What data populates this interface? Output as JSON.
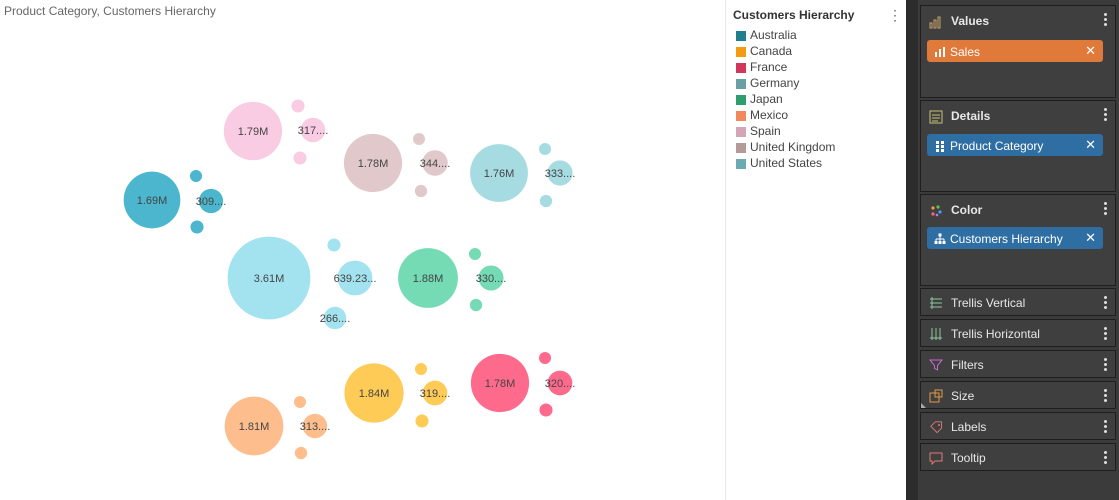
{
  "chart_title": "Product Category, Customers Hierarchy",
  "legend": {
    "title": "Customers Hierarchy",
    "items": [
      {
        "label": "Australia",
        "color": "#1f7f8f"
      },
      {
        "label": "Canada",
        "color": "#f39c12"
      },
      {
        "label": "France",
        "color": "#d1365b"
      },
      {
        "label": "Germany",
        "color": "#6b9fa6"
      },
      {
        "label": "Japan",
        "color": "#2e9e6e"
      },
      {
        "label": "Mexico",
        "color": "#f08a5d"
      },
      {
        "label": "Spain",
        "color": "#d4a5b5"
      },
      {
        "label": "United Kingdom",
        "color": "#b59a9a"
      },
      {
        "label": "United States",
        "color": "#6aaab2"
      }
    ]
  },
  "panel": {
    "values": {
      "title": "Values",
      "field": "Sales",
      "field_color": "#e07a3a"
    },
    "details": {
      "title": "Details",
      "field": "Product Category",
      "field_color": "#2f6ea3"
    },
    "color": {
      "title": "Color",
      "field": "Customers Hierarchy",
      "field_color": "#2f6ea3"
    },
    "trellis_vertical": "Trellis Vertical",
    "trellis_horizontal": "Trellis Horizontal",
    "filters": "Filters",
    "size": "Size",
    "labels": "Labels",
    "tooltip": "Tooltip"
  },
  "chart_data": {
    "type": "packed-bubble",
    "title": "Product Category, Customers Hierarchy",
    "measure": "Sales",
    "groups": [
      {
        "name": "United States",
        "color": "#a3e3ef",
        "bubbles": [
          {
            "value": 3610000,
            "label": "3.61M"
          },
          {
            "value": 639230,
            "label": "639.23..."
          },
          {
            "value": 266000,
            "label": "266...."
          },
          {
            "value": 90000,
            "label": ""
          }
        ]
      },
      {
        "name": "Spain",
        "color": "#f9cce3",
        "bubbles": [
          {
            "value": 1790000,
            "label": "1.79M"
          },
          {
            "value": 317000,
            "label": "317...."
          },
          {
            "value": 90000,
            "label": ""
          },
          {
            "value": 90000,
            "label": ""
          }
        ]
      },
      {
        "name": "United Kingdom",
        "color": "#e1c9cb",
        "bubbles": [
          {
            "value": 1780000,
            "label": "1.78M"
          },
          {
            "value": 344000,
            "label": "344...."
          },
          {
            "value": 80000,
            "label": ""
          },
          {
            "value": 45000,
            "label": ""
          }
        ]
      },
      {
        "name": "Germany",
        "color": "#a6dbe2",
        "bubbles": [
          {
            "value": 1760000,
            "label": "1.76M"
          },
          {
            "value": 333000,
            "label": "333...."
          },
          {
            "value": 80000,
            "label": ""
          },
          {
            "value": 45000,
            "label": ""
          }
        ]
      },
      {
        "name": "Australia",
        "color": "#4bb6cd",
        "bubbles": [
          {
            "value": 1690000,
            "label": "1.69M"
          },
          {
            "value": 309000,
            "label": "309...."
          },
          {
            "value": 90000,
            "label": ""
          },
          {
            "value": 45000,
            "label": ""
          }
        ]
      },
      {
        "name": "Japan",
        "color": "#74dbb4",
        "bubbles": [
          {
            "value": 1880000,
            "label": "1.88M"
          },
          {
            "value": 330000,
            "label": "330...."
          },
          {
            "value": 80000,
            "label": ""
          },
          {
            "value": 45000,
            "label": ""
          }
        ]
      },
      {
        "name": "Mexico",
        "color": "#fdbd8d",
        "bubbles": [
          {
            "value": 1810000,
            "label": "1.81M"
          },
          {
            "value": 313000,
            "label": "313...."
          },
          {
            "value": 80000,
            "label": ""
          },
          {
            "value": 45000,
            "label": ""
          }
        ]
      },
      {
        "name": "Canada",
        "color": "#fecb56",
        "bubbles": [
          {
            "value": 1840000,
            "label": "1.84M"
          },
          {
            "value": 319000,
            "label": "319...."
          },
          {
            "value": 90000,
            "label": ""
          },
          {
            "value": 45000,
            "label": ""
          }
        ]
      },
      {
        "name": "France",
        "color": "#fe6a8c",
        "bubbles": [
          {
            "value": 1780000,
            "label": "1.78M"
          },
          {
            "value": 320000,
            "label": "320...."
          },
          {
            "value": 90000,
            "label": ""
          },
          {
            "value": 45000,
            "label": ""
          }
        ]
      }
    ]
  }
}
